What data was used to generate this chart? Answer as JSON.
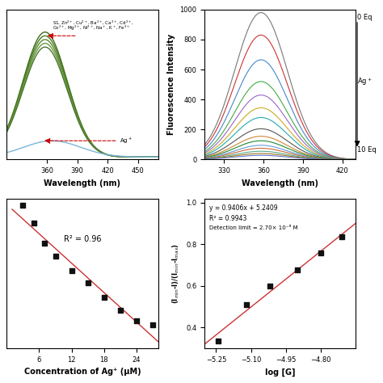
{
  "panel_a": {
    "xlabel": "Wavelength (nm)",
    "peak_nm": 358,
    "sigma": 22,
    "high_amps": [
      1.0,
      0.97,
      0.94,
      0.91,
      0.88
    ],
    "high_colors": [
      "#3d6b1a",
      "#4a7a20",
      "#5a8a30",
      "#6a9a40",
      "#4a7530"
    ],
    "ag_amp": 0.13,
    "ag_peak": 365,
    "ag_sigma": 28,
    "ag_color": "#7ab6d8",
    "arrow_color": "#cc0000",
    "xmin": 320,
    "xmax": 470,
    "xticks": [
      360,
      390,
      420,
      450
    ]
  },
  "panel_b": {
    "xlabel": "Wavelength (nm)",
    "ylabel": "Fluorescence Intensity",
    "xmin": 315,
    "xmax": 430,
    "ymin": 0,
    "ymax": 1000,
    "peak_nm": 358,
    "sigma": 20,
    "xticks": [
      330,
      360,
      390,
      420
    ],
    "yticks": [
      0,
      200,
      400,
      600,
      800,
      1000
    ],
    "colors": [
      "#777777",
      "#cc3333",
      "#4488cc",
      "#44aa44",
      "#9966cc",
      "#ccaa22",
      "#22aaaa",
      "#555555",
      "#cc8833",
      "#228833",
      "#6699dd",
      "#cc6633",
      "#55aa88",
      "#997722",
      "#6677cc"
    ],
    "peak_heights": [
      980,
      830,
      665,
      520,
      430,
      345,
      280,
      205,
      155,
      125,
      95,
      75,
      55,
      40,
      28
    ]
  },
  "panel_c": {
    "xlabel": "Concentration of Ag⁺ (μM)",
    "r2_text": "R² = 0.96",
    "xdata": [
      3,
      5,
      7,
      9,
      12,
      15,
      18,
      21,
      24,
      27
    ],
    "ydata": [
      0.88,
      0.78,
      0.67,
      0.6,
      0.52,
      0.45,
      0.37,
      0.3,
      0.24,
      0.22
    ],
    "line_color": "#cc3333",
    "dot_color": "#111111",
    "xlim": [
      0,
      28
    ],
    "xticks": [
      6,
      12,
      18,
      24
    ]
  },
  "panel_d": {
    "xlabel": "log [G]",
    "ylabel": "(Iₘᵢₙ-I)/(Iₘᵢₙ-Iₘₐˣ)",
    "equation": "y = 0.9406x + 5.2409",
    "r2_text": "R² = 0.9943",
    "det_limit": "Detection limit = 2.70× 10⁻⁶ M",
    "xdata": [
      -5.24,
      -5.12,
      -5.02,
      -4.9,
      -4.8,
      -4.71
    ],
    "ydata": [
      0.335,
      0.51,
      0.6,
      0.675,
      0.76,
      0.835
    ],
    "line_color": "#cc3333",
    "dot_color": "#111111",
    "xlim": [
      -5.3,
      -4.65
    ],
    "ylim": [
      0.3,
      1.02
    ],
    "xticks": [
      -5.25,
      -5.1,
      -4.95,
      -4.8
    ],
    "yticks": [
      0.4,
      0.6,
      0.8,
      1.0
    ]
  },
  "bg_color": "#ffffff",
  "fig_size": [
    4.74,
    4.74
  ],
  "dpi": 100
}
